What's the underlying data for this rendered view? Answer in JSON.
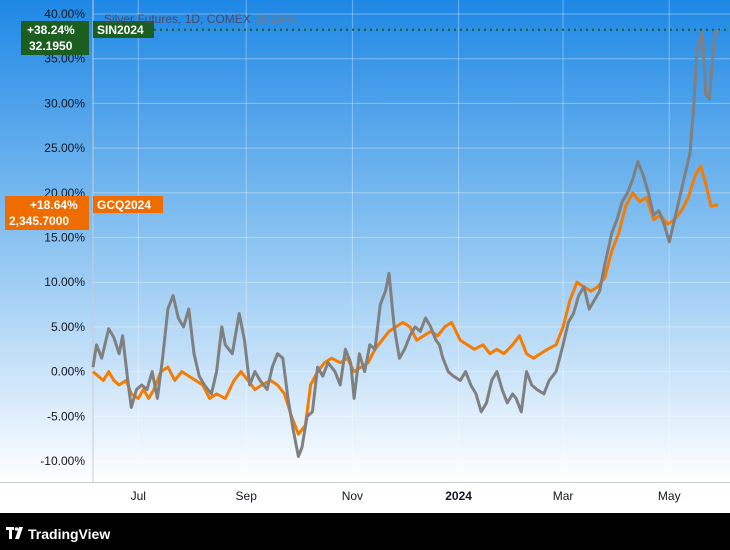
{
  "app": {
    "brand": "TradingView",
    "brand_icon": "tradingview-logo-icon"
  },
  "header": {
    "title": "Silver Futures, 1D, COMEX",
    "change": "38.24%"
  },
  "colors": {
    "background_top": "#1e88e5",
    "background_bottom": "#ffffff",
    "silver_series": "#808080",
    "gold_series": "#f57c00",
    "silver_badge": "#1b5e20",
    "gold_badge": "#ef6c00",
    "footer": "#000000"
  },
  "badges": {
    "silver": {
      "pct": "+38.24%",
      "price": "32.1950",
      "symbol": "SIN2024"
    },
    "gold": {
      "pct": "+18.64%",
      "price": "2,345.7000",
      "symbol": "GCQ2024"
    }
  },
  "chart_data": {
    "type": "line",
    "title": "Silver Futures, 1D, COMEX",
    "ylim": [
      -12.5,
      40
    ],
    "y_ticks": [
      {
        "v": 40,
        "label": "40.00%"
      },
      {
        "v": 35,
        "label": "35.00%"
      },
      {
        "v": 30,
        "label": "30.00%"
      },
      {
        "v": 25,
        "label": "25.00%"
      },
      {
        "v": 20,
        "label": "20.00%"
      },
      {
        "v": 15,
        "label": "15.00%"
      },
      {
        "v": 10,
        "label": "10.00%"
      },
      {
        "v": 5,
        "label": "5.00%"
      },
      {
        "v": 0,
        "label": "0.00%"
      },
      {
        "v": -5,
        "label": "-5.00%"
      },
      {
        "v": -10,
        "label": "-10.00%"
      }
    ],
    "xlim": [
      "2023-06-05",
      "2024-05-29"
    ],
    "x_ticks": [
      {
        "date": "2023-07-01",
        "label": "Jul",
        "bold": false
      },
      {
        "date": "2023-09-01",
        "label": "Sep",
        "bold": false
      },
      {
        "date": "2023-11-01",
        "label": "Nov",
        "bold": false
      },
      {
        "date": "2024-01-01",
        "label": "2024",
        "bold": true
      },
      {
        "date": "2024-03-01",
        "label": "Mar",
        "bold": false
      },
      {
        "date": "2024-05-01",
        "label": "May",
        "bold": false
      }
    ],
    "grid": true,
    "series": [
      {
        "name": "SIN2024",
        "values": [
          [
            "2023-06-05",
            0.5
          ],
          [
            "2023-06-07",
            3
          ],
          [
            "2023-06-10",
            1.5
          ],
          [
            "2023-06-14",
            4.8
          ],
          [
            "2023-06-17",
            3.8
          ],
          [
            "2023-06-20",
            2
          ],
          [
            "2023-06-22",
            4
          ],
          [
            "2023-06-25",
            -1
          ],
          [
            "2023-06-27",
            -4
          ],
          [
            "2023-06-30",
            -2
          ],
          [
            "2023-07-03",
            -1.5
          ],
          [
            "2023-07-06",
            -2
          ],
          [
            "2023-07-09",
            0
          ],
          [
            "2023-07-12",
            -3
          ],
          [
            "2023-07-15",
            1.5
          ],
          [
            "2023-07-18",
            7
          ],
          [
            "2023-07-21",
            8.5
          ],
          [
            "2023-07-24",
            6
          ],
          [
            "2023-07-27",
            5
          ],
          [
            "2023-07-30",
            7
          ],
          [
            "2023-08-02",
            2
          ],
          [
            "2023-08-05",
            -0.5
          ],
          [
            "2023-08-08",
            -1.5
          ],
          [
            "2023-08-12",
            -2.5
          ],
          [
            "2023-08-15",
            0
          ],
          [
            "2023-08-18",
            5
          ],
          [
            "2023-08-20",
            3
          ],
          [
            "2023-08-24",
            2
          ],
          [
            "2023-08-28",
            6.5
          ],
          [
            "2023-08-31",
            3.5
          ],
          [
            "2023-09-03",
            -1.5
          ],
          [
            "2023-09-06",
            0
          ],
          [
            "2023-09-09",
            -1
          ],
          [
            "2023-09-13",
            -2
          ],
          [
            "2023-09-16",
            0.5
          ],
          [
            "2023-09-19",
            2
          ],
          [
            "2023-09-22",
            1.5
          ],
          [
            "2023-09-25",
            -3
          ],
          [
            "2023-09-28",
            -6.5
          ],
          [
            "2023-10-01",
            -9.5
          ],
          [
            "2023-10-03",
            -8.5
          ],
          [
            "2023-10-06",
            -5
          ],
          [
            "2023-10-09",
            -4.5
          ],
          [
            "2023-10-12",
            0.5
          ],
          [
            "2023-10-15",
            -0.5
          ],
          [
            "2023-10-18",
            1
          ],
          [
            "2023-10-22",
            0
          ],
          [
            "2023-10-25",
            -1.5
          ],
          [
            "2023-10-28",
            2.5
          ],
          [
            "2023-10-31",
            1
          ],
          [
            "2023-11-02",
            -3
          ],
          [
            "2023-11-05",
            2
          ],
          [
            "2023-11-08",
            0
          ],
          [
            "2023-11-11",
            3
          ],
          [
            "2023-11-14",
            2.5
          ],
          [
            "2023-11-17",
            7.5
          ],
          [
            "2023-11-20",
            9
          ],
          [
            "2023-11-22",
            11
          ],
          [
            "2023-11-25",
            5
          ],
          [
            "2023-11-28",
            1.5
          ],
          [
            "2023-12-01",
            2.5
          ],
          [
            "2023-12-04",
            4
          ],
          [
            "2023-12-07",
            5
          ],
          [
            "2023-12-10",
            4.5
          ],
          [
            "2023-12-13",
            6
          ],
          [
            "2023-12-16",
            5
          ],
          [
            "2023-12-19",
            3.5
          ],
          [
            "2023-12-21",
            3
          ],
          [
            "2023-12-23",
            1.5
          ],
          [
            "2023-12-26",
            0
          ],
          [
            "2023-12-29",
            -0.5
          ],
          [
            "2024-01-02",
            -1
          ],
          [
            "2024-01-05",
            0
          ],
          [
            "2024-01-08",
            -1.5
          ],
          [
            "2024-01-11",
            -2.5
          ],
          [
            "2024-01-14",
            -4.5
          ],
          [
            "2024-01-17",
            -3.5
          ],
          [
            "2024-01-20",
            -1
          ],
          [
            "2024-01-23",
            0
          ],
          [
            "2024-01-26",
            -2
          ],
          [
            "2024-01-29",
            -3.5
          ],
          [
            "2024-02-01",
            -2.5
          ],
          [
            "2024-02-03",
            -3
          ],
          [
            "2024-02-06",
            -4.5
          ],
          [
            "2024-02-09",
            0
          ],
          [
            "2024-02-12",
            -1.5
          ],
          [
            "2024-02-15",
            -2
          ],
          [
            "2024-02-19",
            -2.5
          ],
          [
            "2024-02-22",
            -1
          ],
          [
            "2024-02-26",
            0
          ],
          [
            "2024-03-01",
            3
          ],
          [
            "2024-03-04",
            5.5
          ],
          [
            "2024-03-07",
            6.5
          ],
          [
            "2024-03-10",
            8.5
          ],
          [
            "2024-03-13",
            9.5
          ],
          [
            "2024-03-16",
            7
          ],
          [
            "2024-03-19",
            8
          ],
          [
            "2024-03-22",
            9
          ],
          [
            "2024-03-25",
            12
          ],
          [
            "2024-03-29",
            15.5
          ],
          [
            "2024-04-01",
            17
          ],
          [
            "2024-04-04",
            19
          ],
          [
            "2024-04-07",
            20
          ],
          [
            "2024-04-10",
            21.5
          ],
          [
            "2024-04-13",
            23.5
          ],
          [
            "2024-04-16",
            22
          ],
          [
            "2024-04-19",
            20
          ],
          [
            "2024-04-22",
            17.5
          ],
          [
            "2024-04-25",
            18
          ],
          [
            "2024-04-28",
            16.5
          ],
          [
            "2024-05-01",
            14.5
          ],
          [
            "2024-05-04",
            17
          ],
          [
            "2024-05-07",
            19.5
          ],
          [
            "2024-05-10",
            22
          ],
          [
            "2024-05-13",
            24.5
          ],
          [
            "2024-05-15",
            29.5
          ],
          [
            "2024-05-17",
            36
          ],
          [
            "2024-05-20",
            38
          ],
          [
            "2024-05-22",
            31
          ],
          [
            "2024-05-24",
            30.5
          ],
          [
            "2024-05-27",
            37.5
          ],
          [
            "2024-05-29",
            38.24
          ]
        ]
      },
      {
        "name": "GCQ2024",
        "values": [
          [
            "2023-06-05",
            0
          ],
          [
            "2023-06-08",
            -0.5
          ],
          [
            "2023-06-11",
            -1
          ],
          [
            "2023-06-14",
            0
          ],
          [
            "2023-06-17",
            -1
          ],
          [
            "2023-06-20",
            -1.5
          ],
          [
            "2023-06-24",
            -1
          ],
          [
            "2023-06-27",
            -2.5
          ],
          [
            "2023-07-01",
            -3
          ],
          [
            "2023-07-04",
            -2
          ],
          [
            "2023-07-07",
            -3
          ],
          [
            "2023-07-10",
            -2
          ],
          [
            "2023-07-14",
            0
          ],
          [
            "2023-07-18",
            0.5
          ],
          [
            "2023-07-22",
            -1
          ],
          [
            "2023-07-26",
            0
          ],
          [
            "2023-07-30",
            -0.5
          ],
          [
            "2023-08-03",
            -1
          ],
          [
            "2023-08-07",
            -1.5
          ],
          [
            "2023-08-11",
            -3
          ],
          [
            "2023-08-15",
            -2.5
          ],
          [
            "2023-08-20",
            -3
          ],
          [
            "2023-08-25",
            -1
          ],
          [
            "2023-08-29",
            0
          ],
          [
            "2023-09-02",
            -1
          ],
          [
            "2023-09-06",
            -2
          ],
          [
            "2023-09-10",
            -1.5
          ],
          [
            "2023-09-15",
            -1
          ],
          [
            "2023-09-19",
            -1.5
          ],
          [
            "2023-09-23",
            -2.5
          ],
          [
            "2023-09-27",
            -5
          ],
          [
            "2023-10-01",
            -7
          ],
          [
            "2023-10-05",
            -6
          ],
          [
            "2023-10-08",
            -1.5
          ],
          [
            "2023-10-12",
            0
          ],
          [
            "2023-10-16",
            1
          ],
          [
            "2023-10-20",
            1.5
          ],
          [
            "2023-10-25",
            1
          ],
          [
            "2023-10-29",
            1.5
          ],
          [
            "2023-11-02",
            0
          ],
          [
            "2023-11-06",
            0.5
          ],
          [
            "2023-11-10",
            1
          ],
          [
            "2023-11-14",
            2.5
          ],
          [
            "2023-11-18",
            3.5
          ],
          [
            "2023-11-22",
            4.5
          ],
          [
            "2023-11-26",
            5
          ],
          [
            "2023-11-30",
            5.5
          ],
          [
            "2023-12-04",
            5
          ],
          [
            "2023-12-08",
            3.5
          ],
          [
            "2023-12-12",
            4
          ],
          [
            "2023-12-16",
            4.5
          ],
          [
            "2023-12-20",
            4
          ],
          [
            "2023-12-24",
            5
          ],
          [
            "2023-12-28",
            5.5
          ],
          [
            "2024-01-02",
            3.5
          ],
          [
            "2024-01-06",
            3
          ],
          [
            "2024-01-10",
            2.5
          ],
          [
            "2024-01-15",
            3
          ],
          [
            "2024-01-19",
            2
          ],
          [
            "2024-01-23",
            2.5
          ],
          [
            "2024-01-27",
            2
          ],
          [
            "2024-02-01",
            3
          ],
          [
            "2024-02-05",
            4
          ],
          [
            "2024-02-09",
            2
          ],
          [
            "2024-02-13",
            1.5
          ],
          [
            "2024-02-17",
            2
          ],
          [
            "2024-02-21",
            2.5
          ],
          [
            "2024-02-26",
            3
          ],
          [
            "2024-03-01",
            5
          ],
          [
            "2024-03-05",
            8
          ],
          [
            "2024-03-09",
            10
          ],
          [
            "2024-03-13",
            9.5
          ],
          [
            "2024-03-17",
            9
          ],
          [
            "2024-03-21",
            9.5
          ],
          [
            "2024-03-25",
            10.5
          ],
          [
            "2024-03-29",
            13.5
          ],
          [
            "2024-04-02",
            15.5
          ],
          [
            "2024-04-06",
            18.5
          ],
          [
            "2024-04-10",
            20
          ],
          [
            "2024-04-14",
            19
          ],
          [
            "2024-04-18",
            19.5
          ],
          [
            "2024-04-22",
            17
          ],
          [
            "2024-04-26",
            17.5
          ],
          [
            "2024-04-30",
            16.5
          ],
          [
            "2024-05-04",
            17
          ],
          [
            "2024-05-08",
            18
          ],
          [
            "2024-05-12",
            19.5
          ],
          [
            "2024-05-16",
            22
          ],
          [
            "2024-05-19",
            23
          ],
          [
            "2024-05-22",
            21
          ],
          [
            "2024-05-25",
            18.5
          ],
          [
            "2024-05-29",
            18.64
          ]
        ]
      }
    ]
  }
}
